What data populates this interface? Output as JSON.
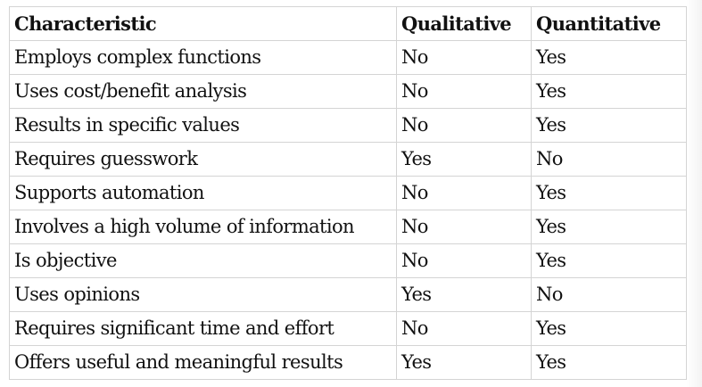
{
  "table": {
    "headers": [
      "Characteristic",
      "Qualitative",
      "Quantitative"
    ],
    "rows": [
      [
        "Employs complex functions",
        "No",
        "Yes"
      ],
      [
        "Uses cost/benefit analysis",
        "No",
        "Yes"
      ],
      [
        "Results in specific values",
        "No",
        "Yes"
      ],
      [
        "Requires guesswork",
        "Yes",
        "No"
      ],
      [
        "Supports automation",
        "No",
        "Yes"
      ],
      [
        "Involves a high volume of information",
        "No",
        "Yes"
      ],
      [
        "Is objective",
        "No",
        "Yes"
      ],
      [
        "Uses opinions",
        "Yes",
        "No"
      ],
      [
        "Requires significant time and effort",
        "No",
        "Yes"
      ],
      [
        "Offers useful and meaningful results",
        "Yes",
        "Yes"
      ]
    ]
  }
}
